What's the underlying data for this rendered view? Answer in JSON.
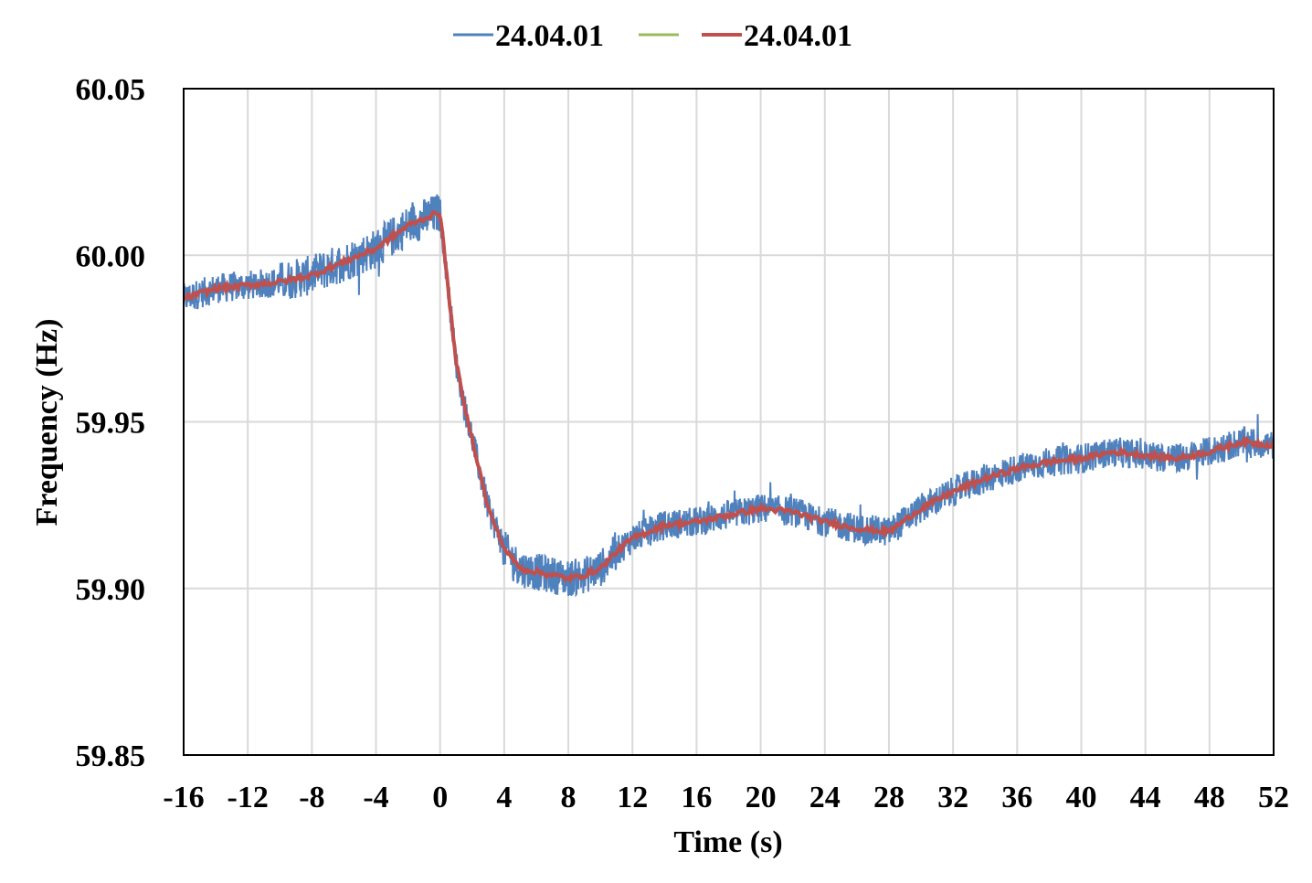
{
  "chart_data": {
    "type": "line",
    "xlabel": "Time (s)",
    "ylabel": "Frequency (Hz)",
    "xlim": [
      -16,
      52
    ],
    "ylim": [
      59.85,
      60.05
    ],
    "xticks": [
      "-16",
      "-12",
      "-8",
      "-4",
      "0",
      "4",
      "8",
      "12",
      "16",
      "20",
      "24",
      "28",
      "32",
      "36",
      "40",
      "44",
      "48",
      "52"
    ],
    "yticks": [
      "59.85",
      "59.90",
      "59.95",
      "60.00",
      "60.05"
    ],
    "grid": true,
    "legend_position": "top",
    "series": [
      {
        "name": "24.04.01",
        "color": "#4f81bd",
        "style": "noisy raw measurement",
        "noise_amplitude_hz": 0.0045,
        "x": [
          -16,
          -14,
          -12,
          -10,
          -8,
          -6,
          -4,
          -2,
          -0.5,
          0,
          0.5,
          1,
          1.5,
          2,
          3,
          4,
          5,
          6,
          7,
          8,
          9,
          10,
          11,
          12,
          14,
          16,
          18,
          20,
          22,
          24,
          26,
          28,
          30,
          32,
          34,
          36,
          38,
          40,
          42,
          44,
          46,
          48,
          50,
          52
        ],
        "y": [
          59.987,
          59.99,
          59.991,
          59.992,
          59.994,
          59.998,
          60.002,
          60.009,
          60.012,
          60.013,
          59.99,
          59.968,
          59.955,
          59.945,
          59.924,
          59.912,
          59.906,
          59.905,
          59.904,
          59.903,
          59.904,
          59.906,
          59.911,
          59.915,
          59.919,
          59.92,
          59.922,
          59.924,
          59.923,
          59.92,
          59.918,
          59.917,
          59.924,
          59.929,
          59.933,
          59.936,
          59.938,
          59.939,
          59.941,
          59.94,
          59.939,
          59.941,
          59.944,
          59.943
        ]
      },
      {
        "name": "",
        "color": "#9bbb59",
        "style": "legend only",
        "x": [],
        "y": []
      },
      {
        "name": "24.04.01",
        "color": "#c0504d",
        "style": "smoothed",
        "x": [
          -16,
          -14,
          -12,
          -10,
          -8,
          -6,
          -4,
          -2,
          -0.5,
          0,
          0.5,
          1,
          1.5,
          2,
          3,
          4,
          5,
          6,
          7,
          8,
          9,
          10,
          11,
          12,
          14,
          16,
          18,
          20,
          22,
          24,
          26,
          28,
          30,
          32,
          34,
          36,
          38,
          40,
          42,
          44,
          46,
          48,
          50,
          52
        ],
        "y": [
          59.987,
          59.99,
          59.991,
          59.992,
          59.994,
          59.998,
          60.002,
          60.009,
          60.012,
          60.013,
          59.99,
          59.968,
          59.955,
          59.945,
          59.924,
          59.912,
          59.906,
          59.905,
          59.904,
          59.903,
          59.904,
          59.906,
          59.911,
          59.915,
          59.919,
          59.92,
          59.922,
          59.924,
          59.923,
          59.92,
          59.918,
          59.917,
          59.924,
          59.929,
          59.933,
          59.936,
          59.938,
          59.939,
          59.941,
          59.94,
          59.939,
          59.941,
          59.944,
          59.943
        ]
      }
    ]
  }
}
